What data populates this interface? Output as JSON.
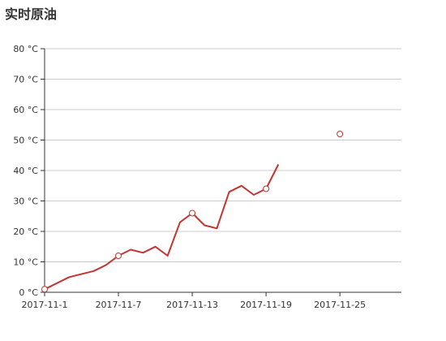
{
  "chart_data": {
    "type": "line",
    "title": "实时原油",
    "xlabel": "",
    "ylabel": "",
    "y_unit": " °C",
    "xlim": [
      "2017-11-01",
      "2017-11-30"
    ],
    "ylim": [
      0,
      80
    ],
    "y_ticks": [
      0,
      10,
      20,
      30,
      40,
      50,
      60,
      70,
      80
    ],
    "y_tick_labels": [
      "0 °C",
      "10 °C",
      "20 °C",
      "30 °C",
      "40 °C",
      "50 °C",
      "60 °C",
      "70 °C",
      "80 °C"
    ],
    "x_ticks": [
      "2017-11-01",
      "2017-11-07",
      "2017-11-13",
      "2017-11-19",
      "2017-11-25"
    ],
    "x_tick_labels": [
      "2017-11-1",
      "2017-11-7",
      "2017-11-13",
      "2017-11-19",
      "2017-11-25"
    ],
    "grid": true,
    "series": [
      {
        "color": "#c23531",
        "points": [
          {
            "x": "2017-11-01",
            "y": 1
          },
          {
            "x": "2017-11-03",
            "y": 5
          },
          {
            "x": "2017-11-05",
            "y": 7
          },
          {
            "x": "2017-11-06",
            "y": 9
          },
          {
            "x": "2017-11-07",
            "y": 12
          },
          {
            "x": "2017-11-08",
            "y": 14
          },
          {
            "x": "2017-11-09",
            "y": 13
          },
          {
            "x": "2017-11-10",
            "y": 15
          },
          {
            "x": "2017-11-11",
            "y": 12
          },
          {
            "x": "2017-11-12",
            "y": 23
          },
          {
            "x": "2017-11-13",
            "y": 26
          },
          {
            "x": "2017-11-14",
            "y": 22
          },
          {
            "x": "2017-11-15",
            "y": 21
          },
          {
            "x": "2017-11-16",
            "y": 33
          },
          {
            "x": "2017-11-17",
            "y": 35
          },
          {
            "x": "2017-11-18",
            "y": 32
          },
          {
            "x": "2017-11-19",
            "y": 34
          },
          {
            "x": "2017-11-20",
            "y": 42
          }
        ],
        "marked_points": [
          {
            "x": "2017-11-01",
            "y": 1
          },
          {
            "x": "2017-11-07",
            "y": 12
          },
          {
            "x": "2017-11-13",
            "y": 26
          },
          {
            "x": "2017-11-19",
            "y": 34
          },
          {
            "x": "2017-11-25",
            "y": 52
          }
        ]
      }
    ]
  }
}
